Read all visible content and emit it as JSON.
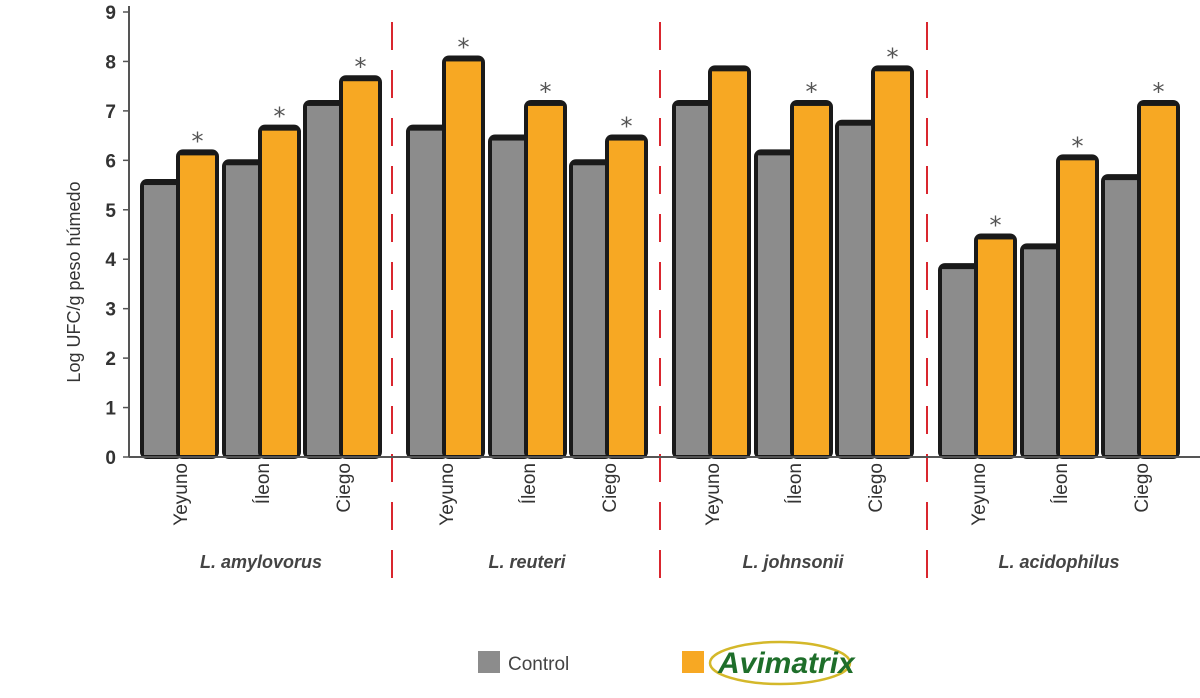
{
  "chart_data": {
    "type": "bar",
    "ylabel": "Log UFC/g peso húmedo",
    "ylim": [
      0,
      9
    ],
    "yticks": [
      0,
      1,
      2,
      3,
      4,
      5,
      6,
      7,
      8,
      9
    ],
    "groups": [
      {
        "name": "L. amylovorus",
        "categories": [
          "Yeyuno",
          "Íleon",
          "Ciego"
        ],
        "control": [
          5.5,
          5.9,
          7.1
        ],
        "avimatrix": [
          6.1,
          6.6,
          7.6
        ],
        "significant": [
          true,
          true,
          true
        ]
      },
      {
        "name": "L. reuteri",
        "categories": [
          "Yeyuno",
          "Íleon",
          "Ciego"
        ],
        "control": [
          6.6,
          6.4,
          5.9
        ],
        "avimatrix": [
          8.0,
          7.1,
          6.4
        ],
        "significant": [
          true,
          true,
          true
        ]
      },
      {
        "name": "L. johnsonii",
        "categories": [
          "Yeyuno",
          "Íleon",
          "Ciego"
        ],
        "control": [
          7.1,
          6.1,
          6.7
        ],
        "avimatrix": [
          7.8,
          7.1,
          7.8
        ],
        "significant": [
          false,
          true,
          true
        ]
      },
      {
        "name": "L. acidophilus",
        "categories": [
          "Yeyuno",
          "Íleon",
          "Ciego"
        ],
        "control": [
          3.8,
          4.2,
          5.6
        ],
        "avimatrix": [
          4.4,
          6.0,
          7.1
        ],
        "significant": [
          true,
          true,
          true
        ]
      }
    ],
    "series": [
      {
        "name": "Control",
        "color": "#8c8c8c"
      },
      {
        "name": "Avimatrix",
        "color": "#f7a823"
      }
    ],
    "significance_marker": "*",
    "legend": {
      "placement": "bottom"
    },
    "colors": {
      "control": "#8c8c8c",
      "avimatrix": "#f7a823",
      "outline": "#1a1a1a",
      "separator": "#d9262e",
      "logo_green": "#1e6e2a",
      "logo_ring": "#d4b82a"
    }
  },
  "legend": {
    "control_label": "Control",
    "avimatrix_logo_text": "Avimatrix"
  }
}
